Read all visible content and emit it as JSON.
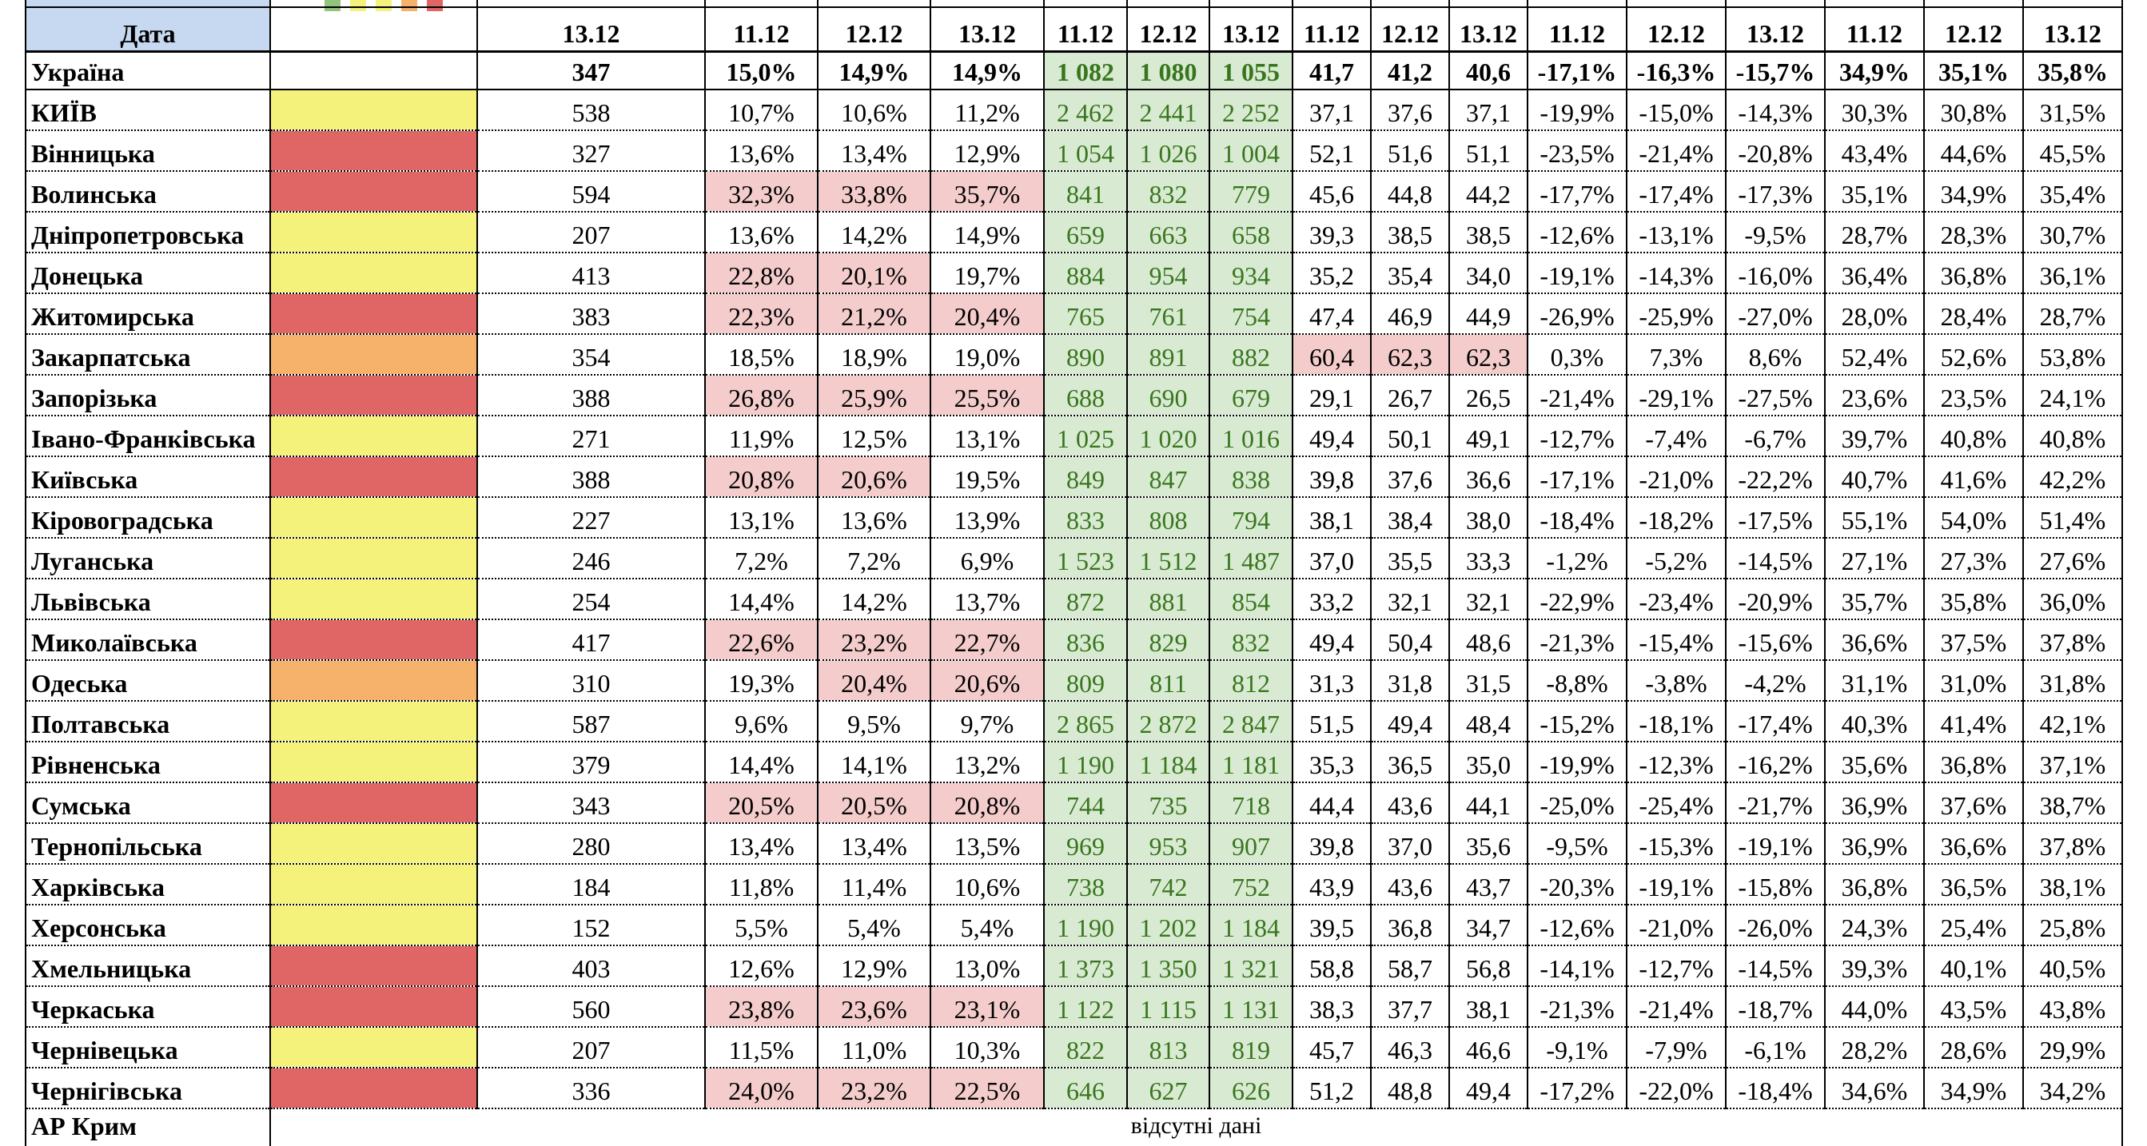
{
  "header": {
    "date_label": "Дата",
    "dates": [
      "13.12",
      "11.12",
      "12.12",
      "13.12",
      "11.12",
      "12.12",
      "13.12",
      "11.12",
      "12.12",
      "13.12",
      "11.12",
      "12.12",
      "13.12",
      "11.12",
      "12.12",
      "13.12"
    ]
  },
  "total": {
    "name": "Україна",
    "values": [
      "347",
      "15,0%",
      "14,9%",
      "14,9%",
      "1 082",
      "1 080",
      "1 055",
      "41,7",
      "41,2",
      "40,6",
      "-17,1%",
      "-16,3%",
      "-15,7%",
      "34,9%",
      "35,1%",
      "35,8%"
    ]
  },
  "green_columns": [
    4,
    5,
    6
  ],
  "green_fill": "#d9ead3",
  "green_text": "#38761d",
  "highlight_color": "#f4cccc",
  "rows": [
    {
      "name": "КИЇВ",
      "zone": "#f4f27a",
      "values": [
        "538",
        "10,7%",
        "10,6%",
        "11,2%",
        "2 462",
        "2 441",
        "2 252",
        "37,1",
        "37,6",
        "37,1",
        "-19,9%",
        "-15,0%",
        "-14,3%",
        "30,3%",
        "30,8%",
        "31,5%"
      ]
    },
    {
      "name": "Вінницька",
      "zone": "#e06666",
      "values": [
        "327",
        "13,6%",
        "13,4%",
        "12,9%",
        "1 054",
        "1 026",
        "1 004",
        "52,1",
        "51,6",
        "51,1",
        "-23,5%",
        "-21,4%",
        "-20,8%",
        "43,4%",
        "44,6%",
        "45,5%"
      ]
    },
    {
      "name": "Волинська",
      "zone": "#e06666",
      "highlight": [
        1,
        2,
        3
      ],
      "values": [
        "594",
        "32,3%",
        "33,8%",
        "35,7%",
        "841",
        "832",
        "779",
        "45,6",
        "44,8",
        "44,2",
        "-17,7%",
        "-17,4%",
        "-17,3%",
        "35,1%",
        "34,9%",
        "35,4%"
      ]
    },
    {
      "name": "Дніпропетровська",
      "zone": "#f4f27a",
      "values": [
        "207",
        "13,6%",
        "14,2%",
        "14,9%",
        "659",
        "663",
        "658",
        "39,3",
        "38,5",
        "38,5",
        "-12,6%",
        "-13,1%",
        "-9,5%",
        "28,7%",
        "28,3%",
        "30,7%"
      ]
    },
    {
      "name": "Донецька",
      "zone": "#f4f27a",
      "highlight": [
        1,
        2
      ],
      "values": [
        "413",
        "22,8%",
        "20,1%",
        "19,7%",
        "884",
        "954",
        "934",
        "35,2",
        "35,4",
        "34,0",
        "-19,1%",
        "-14,3%",
        "-16,0%",
        "36,4%",
        "36,8%",
        "36,1%"
      ]
    },
    {
      "name": "Житомирська",
      "zone": "#e06666",
      "highlight": [
        1,
        2,
        3
      ],
      "values": [
        "383",
        "22,3%",
        "21,2%",
        "20,4%",
        "765",
        "761",
        "754",
        "47,4",
        "46,9",
        "44,9",
        "-26,9%",
        "-25,9%",
        "-27,0%",
        "28,0%",
        "28,4%",
        "28,7%"
      ]
    },
    {
      "name": "Закарпатська",
      "zone": "#f6b26b",
      "highlight": [
        7,
        8,
        9
      ],
      "values": [
        "354",
        "18,5%",
        "18,9%",
        "19,0%",
        "890",
        "891",
        "882",
        "60,4",
        "62,3",
        "62,3",
        "0,3%",
        "7,3%",
        "8,6%",
        "52,4%",
        "52,6%",
        "53,8%"
      ]
    },
    {
      "name": "Запорізька",
      "zone": "#e06666",
      "highlight": [
        1,
        2,
        3
      ],
      "values": [
        "388",
        "26,8%",
        "25,9%",
        "25,5%",
        "688",
        "690",
        "679",
        "29,1",
        "26,7",
        "26,5",
        "-21,4%",
        "-29,1%",
        "-27,5%",
        "23,6%",
        "23,5%",
        "24,1%"
      ]
    },
    {
      "name": "Івано-Франківська",
      "zone": "#f4f27a",
      "values": [
        "271",
        "11,9%",
        "12,5%",
        "13,1%",
        "1 025",
        "1 020",
        "1 016",
        "49,4",
        "50,1",
        "49,1",
        "-12,7%",
        "-7,4%",
        "-6,7%",
        "39,7%",
        "40,8%",
        "40,8%"
      ]
    },
    {
      "name": "Київська",
      "zone": "#e06666",
      "highlight": [
        1,
        2
      ],
      "values": [
        "388",
        "20,8%",
        "20,6%",
        "19,5%",
        "849",
        "847",
        "838",
        "39,8",
        "37,6",
        "36,6",
        "-17,1%",
        "-21,0%",
        "-22,2%",
        "40,7%",
        "41,6%",
        "42,2%"
      ]
    },
    {
      "name": "Кіровоградська",
      "zone": "#f4f27a",
      "values": [
        "227",
        "13,1%",
        "13,6%",
        "13,9%",
        "833",
        "808",
        "794",
        "38,1",
        "38,4",
        "38,0",
        "-18,4%",
        "-18,2%",
        "-17,5%",
        "55,1%",
        "54,0%",
        "51,4%"
      ]
    },
    {
      "name": "Луганська",
      "zone": "#f4f27a",
      "values": [
        "246",
        "7,2%",
        "7,2%",
        "6,9%",
        "1 523",
        "1 512",
        "1 487",
        "37,0",
        "35,5",
        "33,3",
        "-1,2%",
        "-5,2%",
        "-14,5%",
        "27,1%",
        "27,3%",
        "27,6%"
      ]
    },
    {
      "name": "Львівська",
      "zone": "#f4f27a",
      "values": [
        "254",
        "14,4%",
        "14,2%",
        "13,7%",
        "872",
        "881",
        "854",
        "33,2",
        "32,1",
        "32,1",
        "-22,9%",
        "-23,4%",
        "-20,9%",
        "35,7%",
        "35,8%",
        "36,0%"
      ]
    },
    {
      "name": "Миколаївська",
      "zone": "#e06666",
      "highlight": [
        1,
        2,
        3
      ],
      "values": [
        "417",
        "22,6%",
        "23,2%",
        "22,7%",
        "836",
        "829",
        "832",
        "49,4",
        "50,4",
        "48,6",
        "-21,3%",
        "-15,4%",
        "-15,6%",
        "36,6%",
        "37,5%",
        "37,8%"
      ]
    },
    {
      "name": "Одеська",
      "zone": "#f6b26b",
      "highlight": [
        2,
        3
      ],
      "values": [
        "310",
        "19,3%",
        "20,4%",
        "20,6%",
        "809",
        "811",
        "812",
        "31,3",
        "31,8",
        "31,5",
        "-8,8%",
        "-3,8%",
        "-4,2%",
        "31,1%",
        "31,0%",
        "31,8%"
      ]
    },
    {
      "name": "Полтавська",
      "zone": "#f4f27a",
      "values": [
        "587",
        "9,6%",
        "9,5%",
        "9,7%",
        "2 865",
        "2 872",
        "2 847",
        "51,5",
        "49,4",
        "48,4",
        "-15,2%",
        "-18,1%",
        "-17,4%",
        "40,3%",
        "41,4%",
        "42,1%"
      ]
    },
    {
      "name": "Рівненська",
      "zone": "#f4f27a",
      "values": [
        "379",
        "14,4%",
        "14,1%",
        "13,2%",
        "1 190",
        "1 184",
        "1 181",
        "35,3",
        "36,5",
        "35,0",
        "-19,9%",
        "-12,3%",
        "-16,2%",
        "35,6%",
        "36,8%",
        "37,1%"
      ]
    },
    {
      "name": "Сумська",
      "zone": "#e06666",
      "highlight": [
        1,
        2,
        3
      ],
      "values": [
        "343",
        "20,5%",
        "20,5%",
        "20,8%",
        "744",
        "735",
        "718",
        "44,4",
        "43,6",
        "44,1",
        "-25,0%",
        "-25,4%",
        "-21,7%",
        "36,9%",
        "37,6%",
        "38,7%"
      ]
    },
    {
      "name": "Тернопільська",
      "zone": "#f4f27a",
      "values": [
        "280",
        "13,4%",
        "13,4%",
        "13,5%",
        "969",
        "953",
        "907",
        "39,8",
        "37,0",
        "35,6",
        "-9,5%",
        "-15,3%",
        "-19,1%",
        "36,9%",
        "36,6%",
        "37,8%"
      ]
    },
    {
      "name": "Харківська",
      "zone": "#f4f27a",
      "values": [
        "184",
        "11,8%",
        "11,4%",
        "10,6%",
        "738",
        "742",
        "752",
        "43,9",
        "43,6",
        "43,7",
        "-20,3%",
        "-19,1%",
        "-15,8%",
        "36,8%",
        "36,5%",
        "38,1%"
      ]
    },
    {
      "name": "Херсонська",
      "zone": "#f4f27a",
      "values": [
        "152",
        "5,5%",
        "5,4%",
        "5,4%",
        "1 190",
        "1 202",
        "1 184",
        "39,5",
        "36,8",
        "34,7",
        "-12,6%",
        "-21,0%",
        "-26,0%",
        "24,3%",
        "25,4%",
        "25,8%"
      ]
    },
    {
      "name": "Хмельницька",
      "zone": "#e06666",
      "values": [
        "403",
        "12,6%",
        "12,9%",
        "13,0%",
        "1 373",
        "1 350",
        "1 321",
        "58,8",
        "58,7",
        "56,8",
        "-14,1%",
        "-12,7%",
        "-14,5%",
        "39,3%",
        "40,1%",
        "40,5%"
      ]
    },
    {
      "name": "Черкаська",
      "zone": "#e06666",
      "highlight": [
        1,
        2,
        3
      ],
      "values": [
        "560",
        "23,8%",
        "23,6%",
        "23,1%",
        "1 122",
        "1 115",
        "1 131",
        "38,3",
        "37,7",
        "38,1",
        "-21,3%",
        "-21,4%",
        "-18,7%",
        "44,0%",
        "43,5%",
        "43,8%"
      ]
    },
    {
      "name": "Чернівецька",
      "zone": "#f4f27a",
      "values": [
        "207",
        "11,5%",
        "11,0%",
        "10,3%",
        "822",
        "813",
        "819",
        "45,7",
        "46,3",
        "46,6",
        "-9,1%",
        "-7,9%",
        "-6,1%",
        "28,2%",
        "28,6%",
        "29,9%"
      ]
    },
    {
      "name": "Чернігівська",
      "zone": "#e06666",
      "highlight": [
        1,
        2,
        3
      ],
      "values": [
        "336",
        "24,0%",
        "23,2%",
        "22,5%",
        "646",
        "627",
        "626",
        "51,2",
        "48,8",
        "49,4",
        "-17,2%",
        "-22,0%",
        "-18,4%",
        "34,6%",
        "34,9%",
        "34,2%"
      ]
    }
  ],
  "footer": {
    "name": "АР Крим",
    "note": "відсутні дані"
  }
}
